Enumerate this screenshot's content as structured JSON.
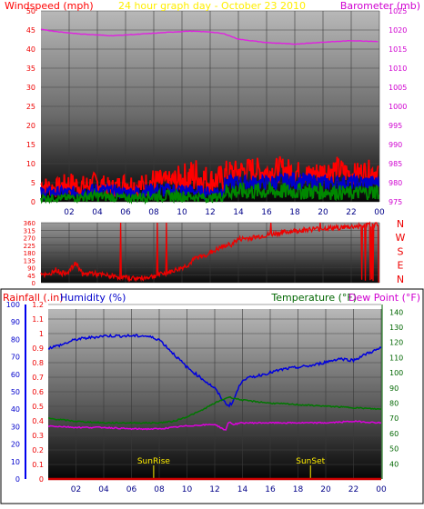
{
  "chart_data": [
    {
      "type": "line",
      "title": "24 hour graph day - October 23 2010",
      "ylabel": "Windspeed (mph)",
      "y2label": "Barometer (mb)",
      "ylim": [
        0,
        50
      ],
      "y2lim": [
        975,
        1025
      ],
      "yticks": [
        0,
        5,
        10,
        15,
        20,
        25,
        30,
        35,
        40,
        45,
        50
      ],
      "y2ticks": [
        975,
        980,
        985,
        990,
        995,
        1000,
        1005,
        1010,
        1015,
        1020,
        1025
      ],
      "xlim": [
        0,
        24
      ],
      "xticks": [
        "02",
        "04",
        "06",
        "08",
        "10",
        "12",
        "14",
        "16",
        "18",
        "20",
        "22",
        "00"
      ],
      "series": [
        {
          "color": "#ff0000",
          "kind": "band",
          "axis": "y",
          "x": [
            0,
            1,
            2,
            3,
            4,
            5,
            6,
            7,
            8,
            9,
            10,
            11,
            12,
            12.9,
            13.1,
            14,
            15,
            16,
            17,
            18,
            19,
            20,
            21,
            22,
            23,
            24
          ],
          "low": [
            2,
            1,
            1.5,
            1,
            2,
            1,
            2,
            1,
            1.5,
            2,
            2,
            1.5,
            2,
            2,
            4,
            5,
            5,
            4.5,
            5,
            5,
            4.5,
            5,
            5,
            4.5,
            5,
            5
          ],
          "high": [
            7,
            6,
            8,
            7,
            8,
            6,
            8,
            7,
            9,
            8,
            10,
            12,
            9,
            10,
            11,
            11,
            12,
            11,
            12,
            11,
            10,
            11,
            12,
            10,
            11,
            11
          ]
        },
        {
          "color": "#0000cc",
          "kind": "band",
          "axis": "y",
          "x": [
            0,
            2,
            4,
            6,
            8,
            10,
            12,
            12.9,
            13.1,
            16,
            18,
            20,
            22,
            24
          ],
          "low": [
            1,
            1,
            1,
            1,
            1,
            1,
            1,
            1,
            3,
            3,
            3,
            3,
            3,
            3
          ],
          "high": [
            4,
            4,
            5,
            4,
            5,
            5,
            4,
            5,
            7,
            7,
            8,
            7,
            7,
            7
          ]
        },
        {
          "color": "#008800",
          "kind": "band",
          "axis": "y",
          "x": [
            0,
            2,
            4,
            6,
            8,
            10,
            12,
            12.9,
            13.1,
            16,
            18,
            20,
            22,
            24
          ],
          "low": [
            0,
            0,
            0,
            0,
            0,
            0,
            0,
            0,
            0.5,
            0.5,
            0.5,
            0.5,
            0.5,
            0.5
          ],
          "high": [
            2,
            2,
            3,
            2,
            3,
            3,
            2,
            3,
            5,
            5,
            5,
            5,
            4,
            5
          ]
        },
        {
          "color": "#e020e0",
          "kind": "line",
          "axis": "y2",
          "x": [
            0,
            1,
            3,
            5,
            7,
            9,
            10.5,
            12,
            13,
            14,
            16,
            18,
            20,
            22,
            24
          ],
          "values": [
            1020.2,
            1019.6,
            1018.9,
            1018.5,
            1018.9,
            1019.4,
            1019.7,
            1019.5,
            1019.0,
            1017.6,
            1016.7,
            1016.3,
            1016.8,
            1017.2,
            1017.0
          ]
        }
      ]
    },
    {
      "type": "scatter",
      "xlim": [
        0,
        24
      ],
      "xticks": [
        "02",
        "04",
        "06",
        "08",
        "10",
        "12",
        "14",
        "16",
        "18",
        "20",
        "22",
        "00"
      ],
      "ylim": [
        0,
        360
      ],
      "yticks": [
        0,
        45,
        90,
        135,
        180,
        225,
        270,
        315,
        360
      ],
      "y2labels": [
        "N",
        "W",
        "S",
        "E",
        "N"
      ],
      "series": [
        {
          "color": "#ee0000",
          "x": [
            0,
            0.5,
            1,
            1.5,
            2,
            2.5,
            3,
            3.5,
            4,
            5,
            6,
            7,
            8,
            9,
            10,
            10.5,
            11,
            11.5,
            12,
            12.5,
            13,
            13.5,
            14,
            15,
            16,
            17,
            18,
            19,
            20,
            21,
            22,
            22.5,
            23,
            23.5,
            24
          ],
          "values": [
            60,
            40,
            80,
            55,
            70,
            120,
            45,
            60,
            50,
            40,
            30,
            25,
            40,
            60,
            90,
            110,
            150,
            160,
            180,
            200,
            220,
            230,
            260,
            270,
            285,
            300,
            310,
            320,
            325,
            330,
            335,
            340,
            345,
            350,
            355
          ]
        }
      ]
    },
    {
      "type": "line",
      "ylabel": "Rainfall (.in)",
      "ylabel2": "Humidity (%)",
      "y2label": "Temperature (°F)",
      "y2label2": "Dew Point (°F)",
      "rain_lim": [
        0,
        1.2
      ],
      "rain_ticks": [
        0,
        0.1,
        0.2,
        0.3,
        0.4,
        0.5,
        0.6,
        0.7,
        0.8,
        0.9,
        1,
        1.1,
        1.2
      ],
      "hum_lim": [
        0,
        100
      ],
      "hum_ticks": [
        0,
        10,
        20,
        30,
        40,
        50,
        60,
        70,
        80,
        90,
        100
      ],
      "y2lim": [
        30,
        145
      ],
      "y2ticks": [
        40,
        50,
        60,
        70,
        80,
        90,
        100,
        110,
        120,
        130,
        140
      ],
      "xlim": [
        0,
        24
      ],
      "xticks": [
        "02",
        "04",
        "06",
        "08",
        "10",
        "12",
        "14",
        "16",
        "18",
        "20",
        "22",
        "00"
      ],
      "annotations": [
        {
          "x": 7.6,
          "label": "SunRise"
        },
        {
          "x": 18.9,
          "label": "SunSet"
        }
      ],
      "series": [
        {
          "color": "#0000dd",
          "axis": "hum",
          "x": [
            0,
            1,
            2,
            3,
            4,
            5,
            6,
            7,
            8,
            9,
            10,
            11,
            12,
            12.6,
            13,
            13.3,
            13.6,
            14,
            15,
            16,
            17,
            18,
            19,
            20,
            21,
            22,
            23,
            24
          ],
          "values": [
            75,
            77,
            80,
            81,
            82,
            82,
            82,
            82,
            80,
            72,
            64,
            58,
            52,
            45,
            42,
            44,
            50,
            57,
            59,
            61,
            63,
            64,
            65,
            67,
            69,
            68,
            72,
            75
          ]
        },
        {
          "color": "#007700",
          "axis": "temp",
          "x": [
            0,
            1,
            2,
            4,
            6,
            8,
            9,
            10,
            11,
            12,
            13,
            14,
            16,
            18,
            20,
            22,
            24
          ],
          "values": [
            70,
            69,
            68,
            67,
            67,
            67,
            68,
            71,
            75,
            80,
            84,
            82,
            80,
            79,
            78,
            77,
            76
          ]
        },
        {
          "color": "#dd00dd",
          "axis": "temp",
          "x": [
            0,
            2,
            4,
            6,
            8,
            10,
            12,
            12.8,
            13,
            13.3,
            14,
            16,
            18,
            20,
            22,
            24
          ],
          "values": [
            65,
            64,
            64,
            63,
            63,
            65,
            66,
            62,
            68,
            66,
            67,
            67,
            67,
            67,
            68,
            67
          ]
        },
        {
          "color": "#cc0000",
          "axis": "rain",
          "x": [
            0,
            24
          ],
          "values": [
            0,
            0
          ]
        }
      ]
    }
  ]
}
